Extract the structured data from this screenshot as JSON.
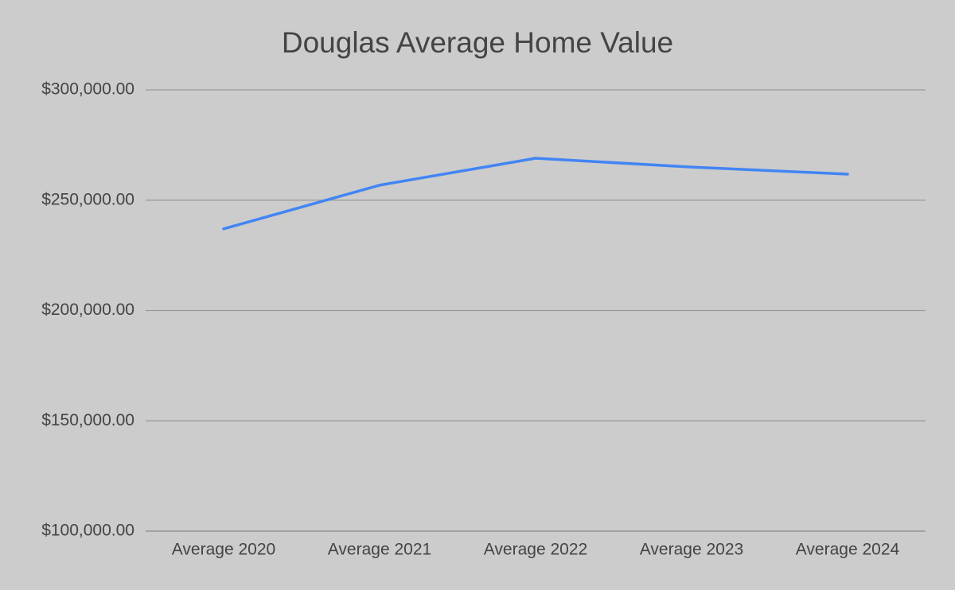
{
  "chart_data": {
    "type": "line",
    "title": "Douglas Average Home Value",
    "categories": [
      "Average 2020",
      "Average 2021",
      "Average 2022",
      "Average 2023",
      "Average 2024"
    ],
    "series": [
      {
        "name": "Douglas",
        "color": "#4285f4",
        "values": [
          237000,
          256800,
          269000,
          265000,
          261800
        ]
      }
    ],
    "ylim": [
      100000,
      300000
    ],
    "yticks": [
      {
        "value": 100000,
        "label": "$100,000.00"
      },
      {
        "value": 150000,
        "label": "$150,000.00"
      },
      {
        "value": 200000,
        "label": "$200,000.00"
      },
      {
        "value": 250000,
        "label": "$250,000.00"
      },
      {
        "value": 300000,
        "label": "$300,000.00"
      }
    ],
    "grid": true
  }
}
